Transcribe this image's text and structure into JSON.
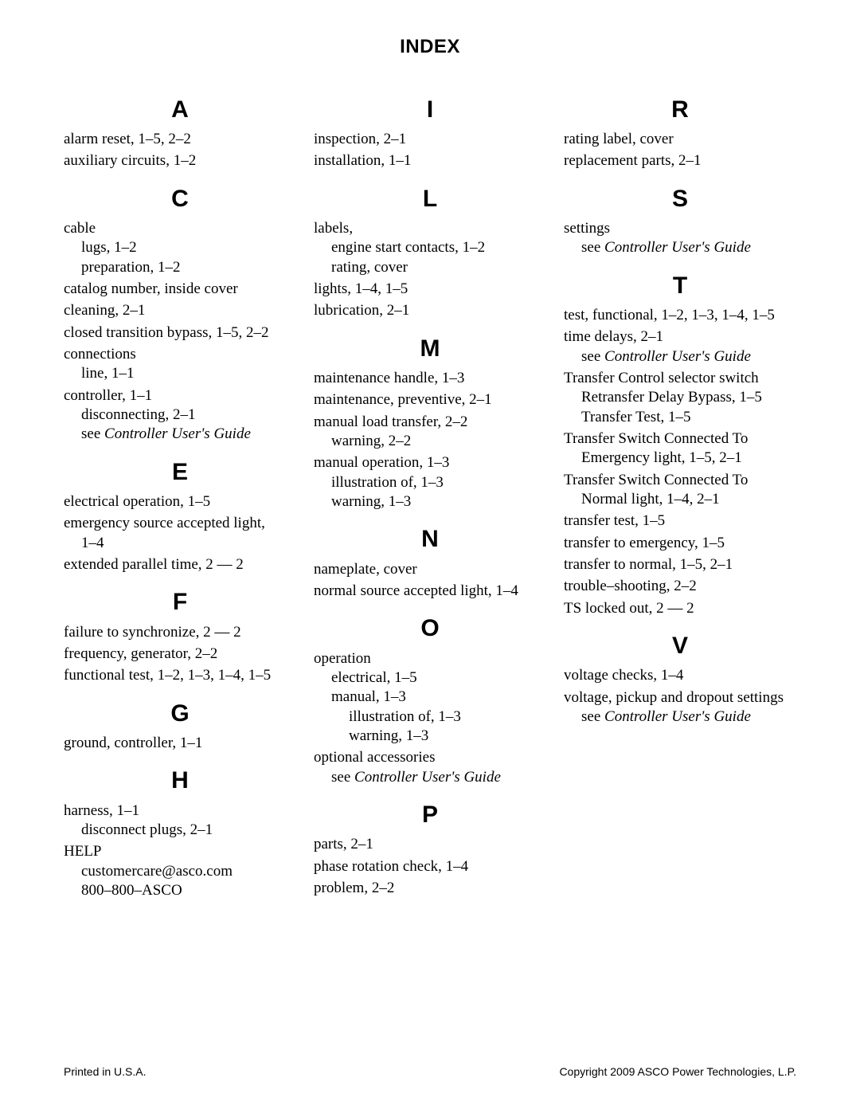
{
  "title": "INDEX",
  "footer_left": "Printed in U.S.A.",
  "footer_right": "Copyright 2009 ASCO Power Technologies, L.P.",
  "columns": [
    {
      "groups": [
        {
          "letter": "A",
          "entries": [
            {
              "lines": [
                {
                  "text": "alarm reset, 1–5, 2–2"
                }
              ]
            },
            {
              "lines": [
                {
                  "text": "auxiliary circuits, 1–2"
                }
              ]
            }
          ]
        },
        {
          "letter": "C",
          "entries": [
            {
              "lines": [
                {
                  "text": "cable"
                },
                {
                  "text": "lugs, 1–2",
                  "sub": true
                },
                {
                  "text": "preparation, 1–2",
                  "sub": true
                }
              ]
            },
            {
              "lines": [
                {
                  "text": "catalog number, inside cover"
                }
              ]
            },
            {
              "lines": [
                {
                  "text": "cleaning, 2–1"
                }
              ]
            },
            {
              "lines": [
                {
                  "text": "closed transition bypass, 1–5, 2–2"
                }
              ]
            },
            {
              "lines": [
                {
                  "text": "connections"
                },
                {
                  "text": "line, 1–1",
                  "sub": true
                }
              ]
            },
            {
              "lines": [
                {
                  "text": "controller, 1–1"
                },
                {
                  "text": "disconnecting, 2–1",
                  "sub": true
                },
                {
                  "prefix": "see ",
                  "seeText": "Controller User's Guide",
                  "sub": true
                }
              ]
            }
          ]
        },
        {
          "letter": "E",
          "entries": [
            {
              "lines": [
                {
                  "text": "electrical operation, 1–5"
                }
              ]
            },
            {
              "lines": [
                {
                  "text": "emergency source accepted light,"
                },
                {
                  "text": "1–4",
                  "sub": true
                }
              ]
            },
            {
              "lines": [
                {
                  "text": "extended parallel time, 2 — 2"
                }
              ]
            }
          ]
        },
        {
          "letter": "F",
          "entries": [
            {
              "lines": [
                {
                  "text": "failure to synchronize, 2 — 2"
                }
              ]
            },
            {
              "lines": [
                {
                  "text": "frequency, generator, 2–2"
                }
              ]
            },
            {
              "lines": [
                {
                  "text": "functional test, 1–2, 1–3, 1–4, 1–5"
                }
              ]
            }
          ]
        },
        {
          "letter": "G",
          "entries": [
            {
              "lines": [
                {
                  "text": "ground, controller, 1–1"
                }
              ]
            }
          ]
        },
        {
          "letter": "H",
          "entries": [
            {
              "lines": [
                {
                  "text": "harness, 1–1"
                },
                {
                  "text": "disconnect plugs, 2–1",
                  "sub": true
                }
              ]
            },
            {
              "lines": [
                {
                  "text": "HELP"
                },
                {
                  "text": "customercare@asco.com",
                  "sub": true
                },
                {
                  "text": "800–800–ASCO",
                  "sub": true
                }
              ]
            }
          ]
        }
      ]
    },
    {
      "groups": [
        {
          "letter": "I",
          "entries": [
            {
              "lines": [
                {
                  "text": "inspection, 2–1"
                }
              ]
            },
            {
              "lines": [
                {
                  "text": "installation, 1–1"
                }
              ]
            }
          ]
        },
        {
          "letter": "L",
          "entries": [
            {
              "lines": [
                {
                  "text": "labels,"
                },
                {
                  "text": "engine start contacts, 1–2",
                  "sub": true
                },
                {
                  "text": "rating, cover",
                  "sub": true
                }
              ]
            },
            {
              "lines": [
                {
                  "text": "lights, 1–4, 1–5"
                }
              ]
            },
            {
              "lines": [
                {
                  "text": "lubrication, 2–1"
                }
              ]
            }
          ]
        },
        {
          "letter": "M",
          "entries": [
            {
              "lines": [
                {
                  "text": "maintenance handle, 1–3"
                }
              ]
            },
            {
              "lines": [
                {
                  "text": "maintenance, preventive, 2–1"
                }
              ]
            },
            {
              "lines": [
                {
                  "text": "manual load transfer, 2–2"
                },
                {
                  "text": "warning, 2–2",
                  "sub": true
                }
              ]
            },
            {
              "lines": [
                {
                  "text": "manual operation, 1–3"
                },
                {
                  "text": "illustration of, 1–3",
                  "sub": true
                },
                {
                  "text": "warning, 1–3",
                  "sub": true
                }
              ]
            }
          ]
        },
        {
          "letter": "N",
          "entries": [
            {
              "lines": [
                {
                  "text": "nameplate, cover"
                }
              ]
            },
            {
              "lines": [
                {
                  "text": "normal source accepted light, 1–4"
                }
              ]
            }
          ]
        },
        {
          "letter": "O",
          "entries": [
            {
              "lines": [
                {
                  "text": "operation"
                },
                {
                  "text": "electrical, 1–5",
                  "sub": true
                },
                {
                  "text": "manual, 1–3",
                  "sub": true
                },
                {
                  "text": "illustration of, 1–3",
                  "sub": true,
                  "sub2": true
                },
                {
                  "text": "warning, 1–3",
                  "sub": true,
                  "sub2": true
                }
              ]
            },
            {
              "lines": [
                {
                  "text": "optional accessories"
                },
                {
                  "prefix": "see ",
                  "seeText": "Controller User's Guide",
                  "sub": true
                }
              ]
            }
          ]
        },
        {
          "letter": "P",
          "entries": [
            {
              "lines": [
                {
                  "text": "parts, 2–1"
                }
              ]
            },
            {
              "lines": [
                {
                  "text": "phase rotation check, 1–4"
                }
              ]
            },
            {
              "lines": [
                {
                  "text": "problem, 2–2"
                }
              ]
            }
          ]
        }
      ]
    },
    {
      "groups": [
        {
          "letter": "R",
          "entries": [
            {
              "lines": [
                {
                  "text": "rating label, cover"
                }
              ]
            },
            {
              "lines": [
                {
                  "text": "replacement parts, 2–1"
                }
              ]
            }
          ]
        },
        {
          "letter": "S",
          "entries": [
            {
              "lines": [
                {
                  "text": "settings"
                },
                {
                  "prefix": "see ",
                  "seeText": "Controller User's Guide",
                  "sub": true
                }
              ]
            }
          ]
        },
        {
          "letter": "T",
          "entries": [
            {
              "lines": [
                {
                  "text": "test, functional, 1–2, 1–3, 1–4, 1–5"
                }
              ]
            },
            {
              "lines": [
                {
                  "text": "time delays, 2–1"
                },
                {
                  "prefix": "see ",
                  "seeText": "Controller User's Guide",
                  "sub": true
                }
              ]
            },
            {
              "lines": [
                {
                  "text": "Transfer Control selector switch"
                },
                {
                  "text": "Retransfer Delay Bypass, 1–5",
                  "sub": true
                },
                {
                  "text": "Transfer Test, 1–5",
                  "sub": true
                }
              ]
            },
            {
              "lines": [
                {
                  "text": "Transfer Switch Connected To"
                },
                {
                  "text": "Emergency light, 1–5,  2–1",
                  "sub": true
                }
              ]
            },
            {
              "lines": [
                {
                  "text": "Transfer Switch Connected To"
                },
                {
                  "text": "Normal light, 1–4, 2–1",
                  "sub": true
                }
              ]
            },
            {
              "lines": [
                {
                  "text": "transfer test, 1–5"
                }
              ]
            },
            {
              "lines": [
                {
                  "text": "transfer to emergency, 1–5"
                }
              ]
            },
            {
              "lines": [
                {
                  "text": "transfer to normal, 1–5, 2–1"
                }
              ]
            },
            {
              "lines": [
                {
                  "text": "trouble–shooting, 2–2"
                }
              ]
            },
            {
              "lines": [
                {
                  "text": "TS locked out, 2 — 2"
                }
              ]
            }
          ]
        },
        {
          "letter": "V",
          "entries": [
            {
              "lines": [
                {
                  "text": "voltage checks, 1–4"
                }
              ]
            },
            {
              "lines": [
                {
                  "text": "voltage, pickup and dropout settings"
                },
                {
                  "prefix": "see ",
                  "seeText": "Controller User's Guide",
                  "sub": true
                }
              ]
            }
          ]
        }
      ]
    }
  ]
}
